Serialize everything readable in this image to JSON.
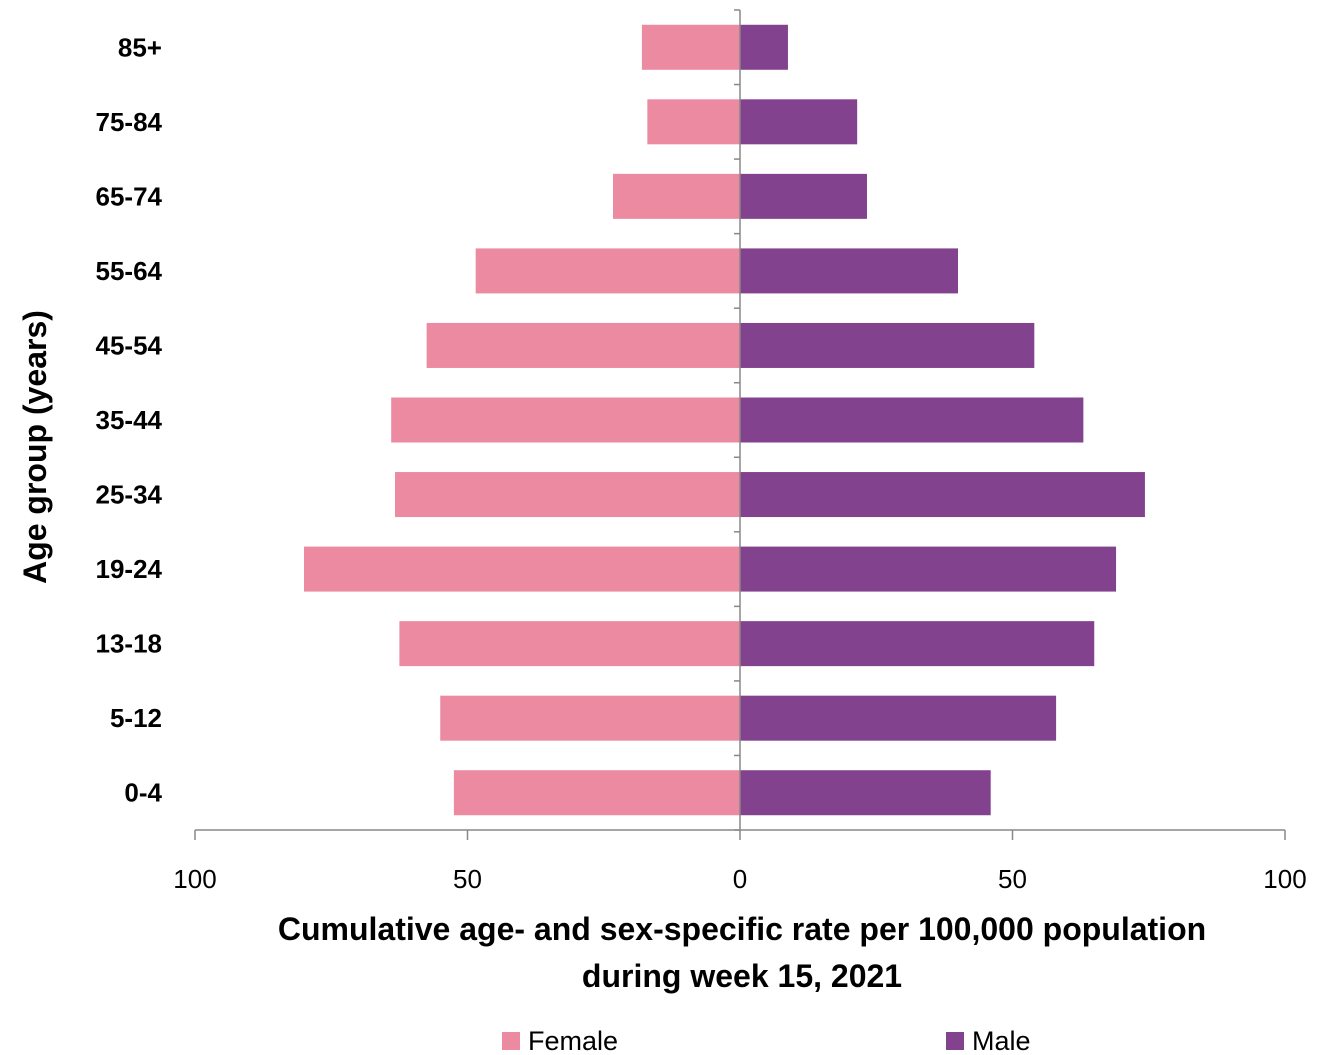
{
  "chart_data": {
    "type": "bar",
    "orientation": "horizontal-population-pyramid",
    "categories": [
      "0-4",
      "5-12",
      "13-18",
      "19-24",
      "25-34",
      "35-44",
      "45-54",
      "55-64",
      "65-74",
      "75-84",
      "85+"
    ],
    "series": [
      {
        "name": "Female",
        "side": "left",
        "color": "#EC8AA2",
        "values": [
          52.5,
          55,
          62.5,
          80,
          63.3,
          64,
          57.5,
          48.5,
          23.3,
          17,
          18
        ]
      },
      {
        "name": "Male",
        "side": "right",
        "color": "#83428E",
        "values": [
          46,
          58,
          65,
          69,
          74.3,
          63,
          54,
          40,
          23.3,
          21.5,
          8.8
        ]
      }
    ],
    "xlabel_lines": [
      "Cumulative age- and sex-specific rate per 100,000 population",
      "during week 15, 2021"
    ],
    "ylabel": "Age group (years)",
    "xlim": [
      -100,
      100
    ],
    "x_ticks": [
      -100,
      -50,
      0,
      50,
      100
    ],
    "x_tick_labels": [
      "100",
      "50",
      "0",
      "50",
      "100"
    ],
    "grid": false,
    "legend_position": "bottom"
  }
}
